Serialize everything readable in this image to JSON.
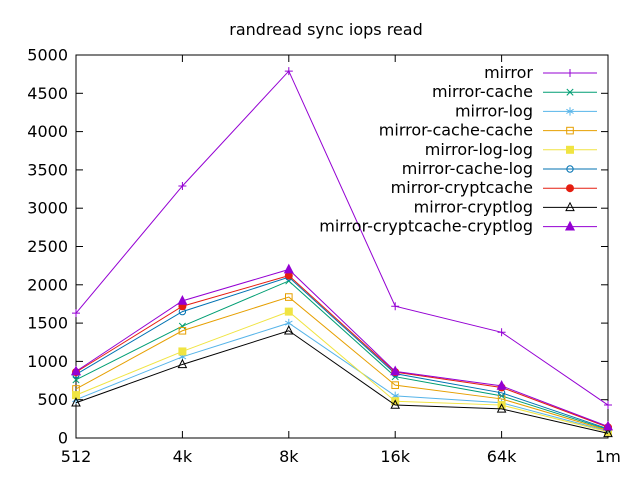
{
  "chart_data": {
    "type": "line",
    "title": "randread sync iops read",
    "xlabel": "",
    "ylabel": "",
    "categories": [
      "512",
      "4k",
      "8k",
      "16k",
      "64k",
      "1m"
    ],
    "ylim": [
      0,
      5000
    ],
    "ytick_step": 500,
    "grid": false,
    "legend_position": "top-right-inside",
    "axis_color": "#000000",
    "background_color": "#ffffff",
    "series": [
      {
        "name": "mirror",
        "color": "#9400d3",
        "marker": "plus",
        "values": [
          1630,
          3290,
          4790,
          1720,
          1380,
          430
        ]
      },
      {
        "name": "mirror-cache",
        "color": "#009e73",
        "marker": "cross",
        "values": [
          760,
          1460,
          2050,
          800,
          550,
          110
        ]
      },
      {
        "name": "mirror-log",
        "color": "#56b4e9",
        "marker": "asterisk",
        "values": [
          500,
          1060,
          1500,
          550,
          460,
          90
        ]
      },
      {
        "name": "mirror-cache-cache",
        "color": "#e69f00",
        "marker": "square-open",
        "values": [
          640,
          1400,
          1840,
          690,
          510,
          100
        ]
      },
      {
        "name": "mirror-log-log",
        "color": "#f0e442",
        "marker": "square-filled",
        "values": [
          560,
          1130,
          1650,
          480,
          430,
          80
        ]
      },
      {
        "name": "mirror-cache-log",
        "color": "#0072b2",
        "marker": "circle-open",
        "values": [
          830,
          1650,
          2100,
          840,
          590,
          120
        ]
      },
      {
        "name": "mirror-cryptcache",
        "color": "#e51e10",
        "marker": "circle-filled",
        "values": [
          860,
          1720,
          2120,
          860,
          660,
          140
        ]
      },
      {
        "name": "mirror-cryptlog",
        "color": "#000000",
        "marker": "triangle-open",
        "values": [
          460,
          960,
          1400,
          430,
          380,
          60
        ]
      },
      {
        "name": "mirror-cryptcache-cryptlog",
        "color": "#9400d3",
        "marker": "triangle-filled",
        "values": [
          870,
          1790,
          2200,
          870,
          680,
          150
        ]
      }
    ]
  }
}
